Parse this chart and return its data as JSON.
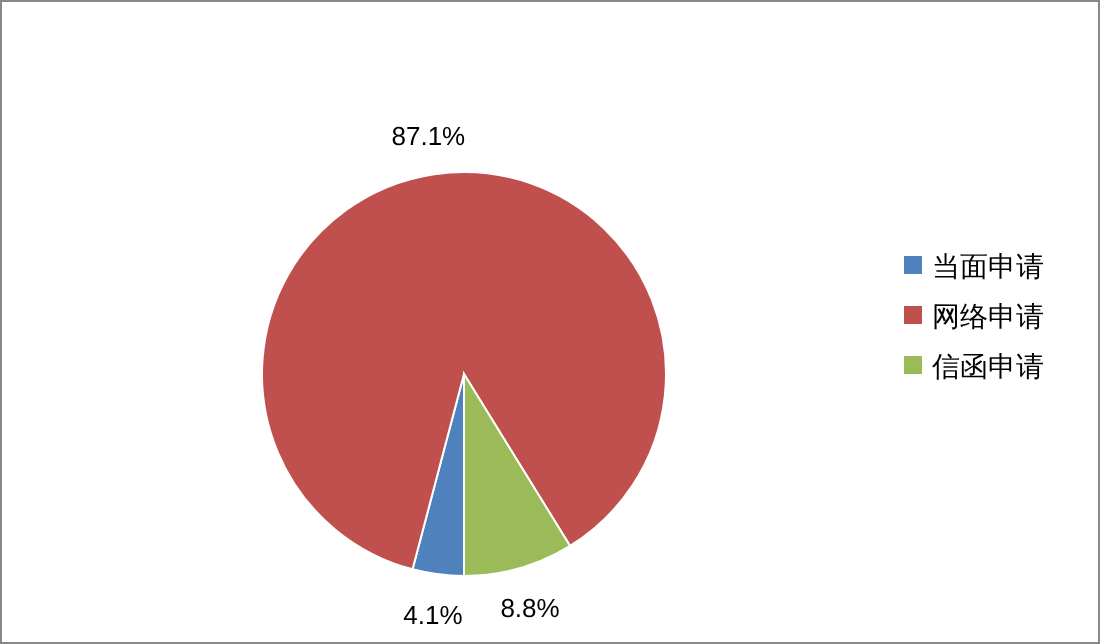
{
  "chart_data": {
    "type": "pie",
    "categories": [
      "当面申请",
      "网络申请",
      "信函申请"
    ],
    "values": [
      4.1,
      87.1,
      8.8
    ],
    "colors": [
      "#4f81bd",
      "#c0504d",
      "#9bbb59"
    ],
    "value_labels": [
      "4.1%",
      "87.1%",
      "8.8%"
    ],
    "legend": "right"
  }
}
